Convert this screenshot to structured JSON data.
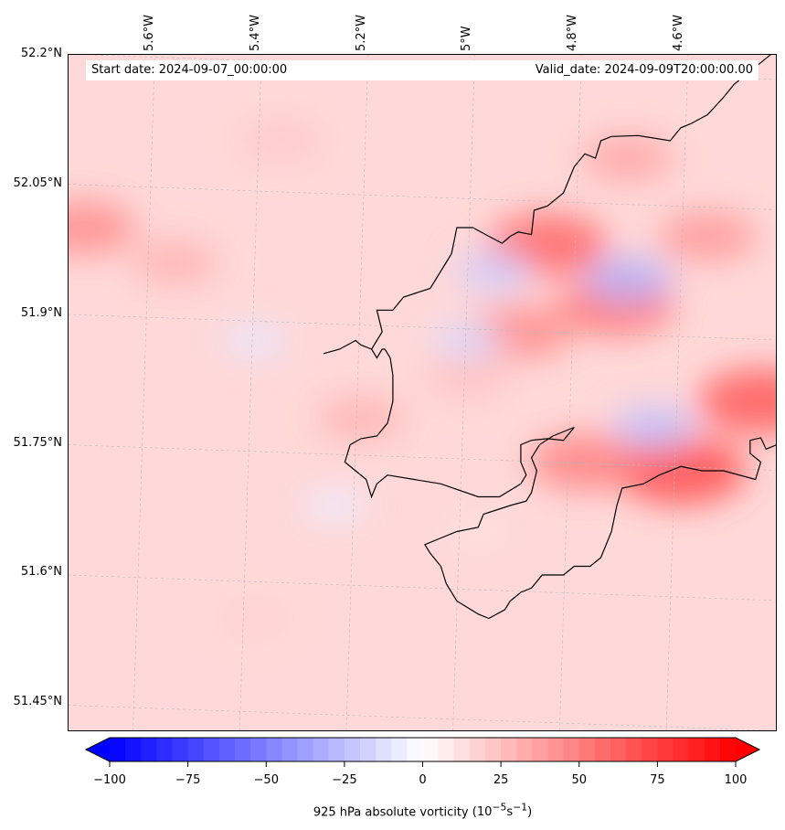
{
  "banner": {
    "start_date": "Start date: 2024-09-07_00:00:00",
    "valid_date": "Valid_date: 2024-09-09T20:00:00.00"
  },
  "axes": {
    "lon_ticks": [
      "5.6°W",
      "5.4°W",
      "5.2°W",
      "5°W",
      "4.8°W",
      "4.6°W"
    ],
    "lat_ticks": [
      "52.2°N",
      "52.05°N",
      "51.9°N",
      "51.75°N",
      "51.6°N",
      "51.45°N"
    ],
    "lon_range": [
      -5.75,
      -4.42
    ],
    "lat_range": [
      51.42,
      52.2
    ]
  },
  "colorbar": {
    "ticks": [
      "−100",
      "−75",
      "−50",
      "−25",
      "0",
      "25",
      "50",
      "75",
      "100"
    ],
    "tick_values": [
      -100,
      -75,
      -50,
      -25,
      0,
      25,
      50,
      75,
      100
    ],
    "range": [
      -100,
      100
    ],
    "title": "925 hPa absolute vorticity",
    "unit_html": "(10<sup>−5</sup>s<sup>−1</sup>)",
    "colormap": "bwr",
    "extend": "both"
  },
  "field": {
    "variable": "925 hPa absolute vorticity",
    "background_value": 15,
    "sea_color": "#fff0f0",
    "blobs": [
      {
        "lon": -5.72,
        "lat": 52.0,
        "value": 45
      },
      {
        "lon": -5.55,
        "lat": 51.96,
        "value": 30
      },
      {
        "lon": -5.35,
        "lat": 52.1,
        "value": 22
      },
      {
        "lon": -5.2,
        "lat": 51.78,
        "value": 30
      },
      {
        "lon": -5.0,
        "lat": 51.83,
        "value": 25
      },
      {
        "lon": -4.85,
        "lat": 51.98,
        "value": 60
      },
      {
        "lon": -4.72,
        "lat": 51.91,
        "value": 55
      },
      {
        "lon": -4.6,
        "lat": 51.72,
        "value": 70
      },
      {
        "lon": -4.45,
        "lat": 51.8,
        "value": 65
      },
      {
        "lon": -4.78,
        "lat": 51.73,
        "value": 50
      },
      {
        "lon": -4.9,
        "lat": 51.88,
        "value": 45
      },
      {
        "lon": -4.55,
        "lat": 51.99,
        "value": 40
      },
      {
        "lon": -4.7,
        "lat": 52.08,
        "value": 35
      },
      {
        "lon": -4.95,
        "lat": 51.95,
        "value": -20
      },
      {
        "lon": -4.7,
        "lat": 51.94,
        "value": -30
      },
      {
        "lon": -4.65,
        "lat": 51.77,
        "value": -25
      },
      {
        "lon": -5.0,
        "lat": 51.87,
        "value": -15
      },
      {
        "lon": -5.4,
        "lat": 51.87,
        "value": -10
      },
      {
        "lon": -5.25,
        "lat": 51.68,
        "value": -8
      },
      {
        "lon": -4.98,
        "lat": 51.65,
        "value": 12
      },
      {
        "lon": -5.4,
        "lat": 51.55,
        "value": 18
      }
    ]
  },
  "coastline": [
    [
      -5.18,
      51.86
    ],
    [
      -5.16,
      51.88
    ],
    [
      -5.17,
      51.905
    ],
    [
      -5.14,
      51.905
    ],
    [
      -5.12,
      51.92
    ],
    [
      -5.07,
      51.93
    ],
    [
      -5.04,
      51.96
    ],
    [
      -5.03,
      51.97
    ],
    [
      -5.025,
      51.985
    ],
    [
      -5.02,
      52.0
    ],
    [
      -4.99,
      52.0
    ],
    [
      -4.96,
      51.99
    ],
    [
      -4.935,
      51.982
    ],
    [
      -4.92,
      51.99
    ],
    [
      -4.905,
      51.995
    ],
    [
      -4.88,
      51.992
    ],
    [
      -4.875,
      52.02
    ],
    [
      -4.85,
      52.025
    ],
    [
      -4.82,
      52.04
    ],
    [
      -4.8,
      52.07
    ],
    [
      -4.78,
      52.085
    ],
    [
      -4.76,
      52.08
    ],
    [
      -4.75,
      52.1
    ],
    [
      -4.73,
      52.105
    ],
    [
      -4.68,
      52.106
    ],
    [
      -4.62,
      52.1
    ],
    [
      -4.6,
      52.115
    ],
    [
      -4.58,
      52.12
    ],
    [
      -4.55,
      52.13
    ],
    [
      -4.52,
      52.15
    ],
    [
      -4.5,
      52.165
    ],
    [
      -4.47,
      52.18
    ],
    [
      -4.43,
      52.2
    ]
  ],
  "coastline_south": [
    [
      -4.42,
      51.75
    ],
    [
      -4.44,
      51.745
    ],
    [
      -4.45,
      51.758
    ],
    [
      -4.47,
      51.755
    ],
    [
      -4.47,
      51.74
    ],
    [
      -4.45,
      51.73
    ],
    [
      -4.46,
      51.71
    ],
    [
      -4.52,
      51.72
    ],
    [
      -4.56,
      51.72
    ],
    [
      -4.6,
      51.725
    ],
    [
      -4.64,
      51.715
    ],
    [
      -4.67,
      51.705
    ],
    [
      -4.71,
      51.7
    ],
    [
      -4.72,
      51.68
    ],
    [
      -4.73,
      51.65
    ],
    [
      -4.75,
      51.62
    ],
    [
      -4.77,
      51.61
    ],
    [
      -4.8,
      51.61
    ],
    [
      -4.82,
      51.6
    ],
    [
      -4.86,
      51.6
    ],
    [
      -4.88,
      51.585
    ],
    [
      -4.9,
      51.58
    ],
    [
      -4.92,
      51.57
    ],
    [
      -4.93,
      51.56
    ],
    [
      -4.96,
      51.55
    ],
    [
      -4.98,
      51.555
    ],
    [
      -5.02,
      51.57
    ],
    [
      -5.04,
      51.59
    ],
    [
      -5.05,
      51.61
    ],
    [
      -5.07,
      51.625
    ],
    [
      -5.08,
      51.635
    ],
    [
      -5.06,
      51.64
    ],
    [
      -5.02,
      51.65
    ],
    [
      -4.98,
      51.655
    ],
    [
      -4.97,
      51.67
    ],
    [
      -4.92,
      51.68
    ],
    [
      -4.89,
      51.685
    ],
    [
      -4.88,
      51.695
    ],
    [
      -4.87,
      51.72
    ],
    [
      -4.88,
      51.735
    ],
    [
      -4.865,
      51.75
    ],
    [
      -4.84,
      51.76
    ],
    [
      -4.8,
      51.77
    ],
    [
      -4.82,
      51.755
    ],
    [
      -4.85,
      51.757
    ],
    [
      -4.88,
      51.755
    ],
    [
      -4.9,
      51.75
    ],
    [
      -4.9,
      51.73
    ],
    [
      -4.89,
      51.715
    ],
    [
      -4.9,
      51.705
    ],
    [
      -4.94,
      51.69
    ],
    [
      -4.98,
      51.69
    ],
    [
      -5.05,
      51.705
    ],
    [
      -5.1,
      51.71
    ],
    [
      -5.15,
      51.715
    ],
    [
      -5.17,
      51.705
    ],
    [
      -5.18,
      51.69
    ],
    [
      -5.19,
      51.71
    ],
    [
      -5.23,
      51.73
    ],
    [
      -5.22,
      51.75
    ],
    [
      -5.2,
      51.757
    ],
    [
      -5.17,
      51.76
    ],
    [
      -5.15,
      51.775
    ],
    [
      -5.14,
      51.8
    ],
    [
      -5.14,
      51.83
    ],
    [
      -5.145,
      51.85
    ],
    [
      -5.155,
      51.86
    ],
    [
      -5.16,
      51.86
    ],
    [
      -5.17,
      51.85
    ],
    [
      -5.18,
      51.86
    ]
  ],
  "coastline_west": [
    [
      -5.18,
      51.86
    ],
    [
      -5.2,
      51.865
    ],
    [
      -5.21,
      51.87
    ],
    [
      -5.24,
      51.86
    ],
    [
      -5.27,
      51.855
    ]
  ]
}
